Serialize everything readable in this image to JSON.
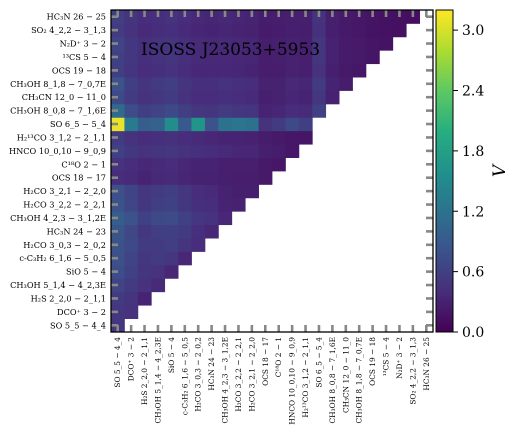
{
  "chart_data": {
    "type": "heatmap",
    "title": "ISOSS J23053+5953",
    "colorbar_label": "V",
    "colorbar_ticks": [
      "0.0",
      "0.6",
      "1.2",
      "1.8",
      "2.4",
      "3.0"
    ],
    "colorbar_range": [
      0.0,
      3.2
    ],
    "colormap": "viridis",
    "lower_triangle_only": true,
    "categories": [
      "SO 5_5 − 4_4",
      "DCO⁺ 3 − 2",
      "H₂S 2_2,0 − 2_1,1",
      "CH₃OH 5_1,4 − 4_2,3E",
      "SiO 5 − 4",
      "c-C₃H₂ 6_1,6 − 5_0,5",
      "H₂CO 3_0,3 − 2_0,2",
      "HC₃N 24 − 23",
      "CH₃OH 4_2,3 − 3_1,2E",
      "H₂CO 3_2,2 − 2_2,1",
      "H₂CO 3_2,1 − 2_2,0",
      "OCS 18 − 17",
      "C¹⁸O 2 − 1",
      "HNCO 10_0,10 − 9_0,9",
      "H₂¹³CO 3_1,2 − 2_1,1",
      "SO 6_5 − 5_4",
      "CH₃OH 8_0,8 − 7_1,6E",
      "CH₃CN 12_0 − 11_0",
      "CH₃OH 8_1,8 − 7_0,7E",
      "OCS 19 − 18",
      "¹³CS 5 − 4",
      "N₂D⁺ 3 − 2",
      "SO₂ 4_2,2 − 3_1,3",
      "HC₃N 26 − 25"
    ],
    "values_lower_triangle": [
      [
        0.5
      ],
      [
        0.5,
        0.45
      ],
      [
        0.55,
        0.48,
        0.32
      ],
      [
        0.65,
        0.55,
        0.45,
        0.38
      ],
      [
        0.75,
        0.62,
        0.48,
        0.45,
        0.35
      ],
      [
        0.78,
        0.65,
        0.5,
        0.55,
        0.5,
        0.35
      ],
      [
        0.8,
        0.7,
        0.55,
        0.55,
        0.58,
        0.48,
        0.4
      ],
      [
        0.85,
        0.68,
        0.52,
        0.58,
        0.6,
        0.55,
        0.42,
        0.35
      ],
      [
        0.95,
        0.8,
        0.62,
        0.7,
        0.72,
        0.62,
        0.5,
        0.45,
        0.35
      ],
      [
        0.8,
        0.66,
        0.52,
        0.58,
        0.62,
        0.52,
        0.42,
        0.4,
        0.32,
        0.3
      ],
      [
        0.78,
        0.64,
        0.5,
        0.55,
        0.6,
        0.5,
        0.4,
        0.38,
        0.3,
        0.28,
        0.28
      ],
      [
        0.4,
        0.38,
        0.32,
        0.36,
        0.38,
        0.34,
        0.3,
        0.3,
        0.28,
        0.26,
        0.26,
        0.22
      ],
      [
        0.45,
        0.4,
        0.35,
        0.38,
        0.4,
        0.35,
        0.32,
        0.32,
        0.28,
        0.28,
        0.28,
        0.22,
        0.2
      ],
      [
        0.62,
        0.52,
        0.45,
        0.48,
        0.5,
        0.45,
        0.42,
        0.4,
        0.38,
        0.35,
        0.35,
        0.28,
        0.25,
        0.2
      ],
      [
        0.55,
        0.45,
        0.4,
        0.42,
        0.44,
        0.4,
        0.38,
        0.35,
        0.32,
        0.32,
        0.3,
        0.25,
        0.22,
        0.2,
        0.18
      ],
      [
        3.1,
        1.3,
        0.95,
        1.0,
        1.55,
        0.9,
        1.65,
        0.8,
        1.2,
        1.25,
        1.2,
        0.45,
        0.55,
        0.7,
        0.6
      ],
      [
        1.1,
        0.75,
        0.6,
        0.65,
        0.7,
        0.58,
        0.5,
        0.48,
        0.55,
        0.5,
        0.48,
        0.32,
        0.34,
        0.4,
        0.38,
        0.62
      ],
      [
        0.7,
        0.55,
        0.45,
        0.5,
        0.55,
        0.45,
        0.4,
        0.4,
        0.42,
        0.4,
        0.38,
        0.28,
        0.3,
        0.34,
        0.32,
        0.5,
        0.3
      ],
      [
        0.8,
        0.6,
        0.48,
        0.55,
        0.58,
        0.48,
        0.42,
        0.42,
        0.45,
        0.42,
        0.4,
        0.3,
        0.3,
        0.36,
        0.34,
        0.55,
        0.32,
        0.25
      ],
      [
        0.6,
        0.48,
        0.4,
        0.42,
        0.45,
        0.4,
        0.35,
        0.35,
        0.35,
        0.34,
        0.32,
        0.26,
        0.26,
        0.3,
        0.28,
        0.45,
        0.28,
        0.22,
        0.2
      ],
      [
        0.62,
        0.5,
        0.42,
        0.45,
        0.48,
        0.42,
        0.38,
        0.36,
        0.36,
        0.35,
        0.34,
        0.26,
        0.28,
        0.3,
        0.28,
        0.48,
        0.3,
        0.24,
        0.22,
        0.18
      ],
      [
        0.65,
        0.52,
        0.42,
        0.46,
        0.48,
        0.42,
        0.38,
        0.36,
        0.38,
        0.35,
        0.34,
        0.26,
        0.28,
        0.3,
        0.28,
        0.5,
        0.3,
        0.24,
        0.22,
        0.18,
        0.16
      ],
      [
        0.55,
        0.45,
        0.38,
        0.4,
        0.42,
        0.38,
        0.34,
        0.32,
        0.34,
        0.32,
        0.3,
        0.24,
        0.25,
        0.28,
        0.26,
        0.44,
        0.27,
        0.22,
        0.2,
        0.16,
        0.15,
        0.14
      ],
      [
        0.6,
        0.48,
        0.4,
        0.42,
        0.45,
        0.4,
        0.36,
        0.34,
        0.36,
        0.34,
        0.32,
        0.25,
        0.26,
        0.28,
        0.27,
        0.46,
        0.28,
        0.22,
        0.2,
        0.17,
        0.15,
        0.14,
        0.12
      ]
    ]
  }
}
